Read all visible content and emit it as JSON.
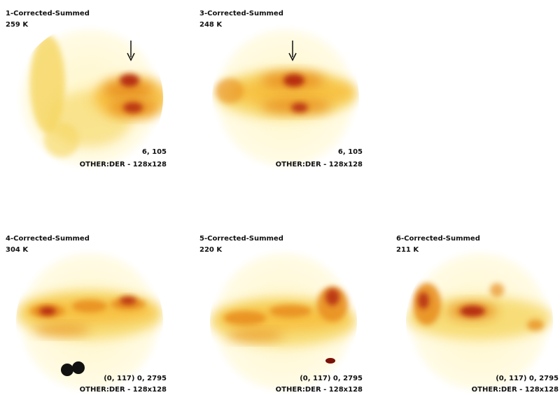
{
  "panels": [
    {
      "title": "1-Corrected-Summed",
      "counts": "259 K",
      "info": "6, 105",
      "matrix": "OTHER:DER - 128x128"
    },
    {
      "title": "3-Corrected-Summed",
      "counts": "248 K",
      "info": "6, 105",
      "matrix": "OTHER:DER - 128x128"
    },
    {
      "title": "4-Corrected-Summed",
      "counts": "304 K",
      "info": "(0, 117) 0, 2795",
      "matrix": "OTHER:DER - 128x128"
    },
    {
      "title": "5-Corrected-Summed",
      "counts": "220 K",
      "info": "(0, 117) 0, 2795",
      "matrix": "OTHER:DER - 128x128"
    },
    {
      "title": "6-Corrected-Summed",
      "counts": "211 K",
      "info": "(0, 117) 0, 2795",
      "matrix": "OTHER:DER - 128x128"
    }
  ]
}
